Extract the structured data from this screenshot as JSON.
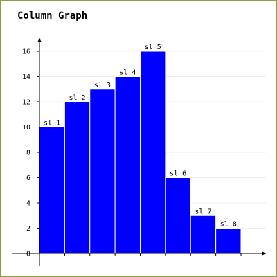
{
  "chart_data": {
    "type": "bar",
    "title": "Column Graph",
    "categories": [
      "sl 1",
      "sl 2",
      "sl 3",
      "sl 4",
      "sl 5",
      "sl 6",
      "sl 7",
      "sl 8"
    ],
    "values": [
      10,
      12,
      13,
      14,
      16,
      6,
      3,
      2
    ],
    "ylim": [
      0,
      16
    ],
    "yticks": [
      0,
      2,
      4,
      6,
      8,
      10,
      12,
      14,
      16
    ],
    "grid": true,
    "xlabel": "",
    "ylabel": "",
    "bar_color": "#0000ff",
    "bar_edge_color": "#ffffff",
    "axis_color": "#000000",
    "grid_color": "#eeeeee"
  }
}
